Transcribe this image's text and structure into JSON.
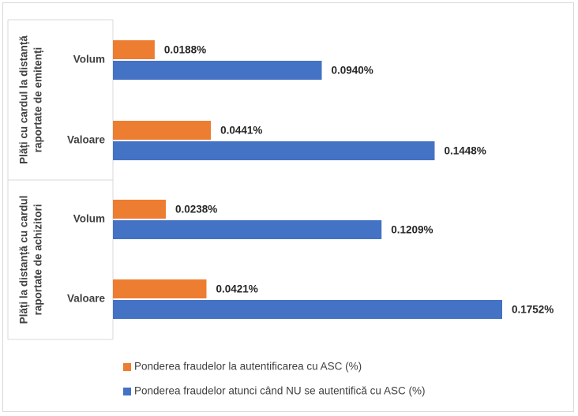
{
  "chart_data": {
    "type": "bar",
    "orientation": "horizontal",
    "groups": [
      {
        "label_lines": [
          "Plăți cu cardul la distanță",
          "raportate de emitenți"
        ],
        "categories": [
          "Volum",
          "Valoare"
        ]
      },
      {
        "label_lines": [
          "Plăți la distanță cu cardul",
          "raportate de achizitori"
        ],
        "categories": [
          "Volum",
          "Valoare"
        ]
      }
    ],
    "series": [
      {
        "name": "Ponderea fraudelor la autentificarea cu ASC (%)",
        "color": "#ed7d31",
        "values": [
          0.0188,
          0.0441,
          0.0238,
          0.0421
        ],
        "labels": [
          "0.0188%",
          "0.0441%",
          "0.0238%",
          "0.0421%"
        ]
      },
      {
        "name": "Ponderea fraudelor atunci când NU se autentifică cu ASC (%)",
        "color": "#4472c4",
        "values": [
          0.094,
          0.1448,
          0.1209,
          0.1752
        ],
        "labels": [
          "0.0940%",
          "0.1448%",
          "0.1209%",
          "0.1752%"
        ]
      }
    ],
    "xlim": [
      0,
      0.2
    ],
    "grid": false,
    "axis_visible": false,
    "legend_position": "bottom"
  }
}
